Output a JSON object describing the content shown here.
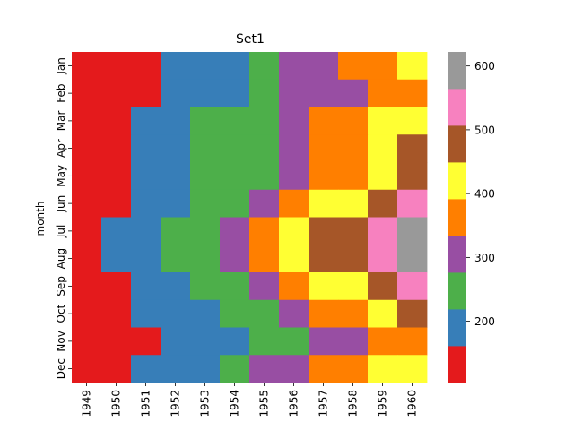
{
  "chart_data": {
    "type": "heatmap",
    "title": "Set1",
    "xlabel": "",
    "ylabel": "month",
    "x_categories": [
      "1949",
      "1950",
      "1951",
      "1952",
      "1953",
      "1954",
      "1955",
      "1956",
      "1957",
      "1958",
      "1959",
      "1960"
    ],
    "y_categories": [
      "Jan",
      "Feb",
      "Mar",
      "Apr",
      "May",
      "Jun",
      "Jul",
      "Aug",
      "Sep",
      "Oct",
      "Nov",
      "Dec"
    ],
    "values": [
      [
        112,
        115,
        145,
        171,
        196,
        204,
        242,
        284,
        315,
        340,
        360,
        417
      ],
      [
        118,
        126,
        150,
        180,
        196,
        188,
        233,
        277,
        301,
        318,
        342,
        391
      ],
      [
        132,
        141,
        178,
        193,
        236,
        235,
        267,
        317,
        356,
        362,
        406,
        419
      ],
      [
        129,
        135,
        163,
        181,
        235,
        227,
        269,
        313,
        348,
        348,
        396,
        461
      ],
      [
        121,
        125,
        172,
        183,
        229,
        234,
        270,
        318,
        355,
        363,
        420,
        472
      ],
      [
        135,
        149,
        178,
        218,
        243,
        264,
        315,
        374,
        422,
        435,
        472,
        535
      ],
      [
        148,
        170,
        199,
        230,
        264,
        302,
        364,
        413,
        465,
        491,
        548,
        622
      ],
      [
        148,
        170,
        199,
        242,
        272,
        293,
        347,
        405,
        467,
        505,
        559,
        606
      ],
      [
        136,
        158,
        184,
        209,
        237,
        259,
        312,
        355,
        404,
        404,
        463,
        508
      ],
      [
        119,
        133,
        162,
        191,
        211,
        229,
        274,
        306,
        347,
        359,
        407,
        461
      ],
      [
        104,
        114,
        146,
        172,
        180,
        203,
        237,
        271,
        305,
        310,
        362,
        390
      ],
      [
        118,
        140,
        166,
        194,
        201,
        229,
        278,
        306,
        336,
        337,
        405,
        432
      ]
    ],
    "colormap": "Set1",
    "palette": [
      "#e41a1c",
      "#377eb8",
      "#4daf4a",
      "#984ea3",
      "#ff7f00",
      "#ffff33",
      "#a65628",
      "#f781bf",
      "#999999"
    ],
    "vmin": 104,
    "vmax": 622,
    "colorbar_ticks": [
      200,
      300,
      400,
      500,
      600
    ]
  }
}
